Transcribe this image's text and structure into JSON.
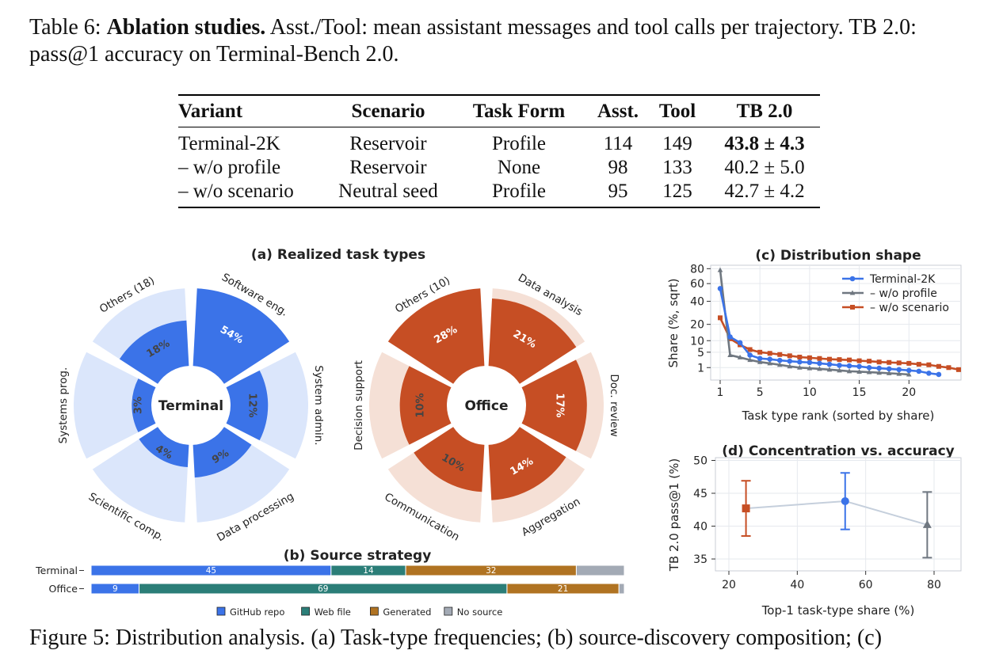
{
  "caption": {
    "label": "Table 6:",
    "title": "Ablation studies.",
    "text": "Asst./Tool: mean assistant messages and tool calls per trajectory. TB 2.0:",
    "line2": "pass@1 accuracy on Terminal-Bench 2.0."
  },
  "table": {
    "headers": [
      "Variant",
      "Scenario",
      "Task Form",
      "Asst.",
      "Tool",
      "TB 2.0"
    ],
    "rows": [
      {
        "variant": "Terminal-2K",
        "scenario": "Reservoir",
        "task_form": "Profile",
        "asst": "114",
        "tool": "149",
        "tb": "43.8 ± 4.3",
        "bold": true
      },
      {
        "variant": "– w/o profile",
        "scenario": "Reservoir",
        "task_form": "None",
        "asst": "98",
        "tool": "133",
        "tb": "40.2 ± 5.0",
        "bold": false
      },
      {
        "variant": "– w/o scenario",
        "scenario": "Neutral seed",
        "task_form": "Profile",
        "asst": "95",
        "tool": "125",
        "tb": "42.7 ± 4.2",
        "bold": false
      }
    ]
  },
  "colors": {
    "terminal": "#3b73e8",
    "terminal_light": "#dbe6fb",
    "office": "#c64e24",
    "office_light": "#f5e0d6",
    "teal": "#2b7e78",
    "generated": "#b07322",
    "nosource": "#a3aab5",
    "gray": "#6f7780"
  },
  "chart_data": [
    {
      "type": "pie",
      "panel_title": "(a) Realized task types",
      "center_label": "Terminal",
      "slices": [
        {
          "label": "Software eng.",
          "value": 54
        },
        {
          "label": "System admin.",
          "value": 12
        },
        {
          "label": "Data processing",
          "value": 9
        },
        {
          "label": "Scientific comp.",
          "value": 4
        },
        {
          "label": "Systems prog.",
          "value": 3
        },
        {
          "label": "Others (18)",
          "value": 18
        }
      ]
    },
    {
      "type": "pie",
      "center_label": "Office",
      "slices": [
        {
          "label": "Data analysis",
          "value": 21
        },
        {
          "label": "Doc. review",
          "value": 17
        },
        {
          "label": "Aggregation",
          "value": 14
        },
        {
          "label": "Communication",
          "value": 10
        },
        {
          "label": "Decision support",
          "value": 10
        },
        {
          "label": "Others (10)",
          "value": 28
        }
      ]
    },
    {
      "type": "bar",
      "title": "(b) Source strategy",
      "categories": [
        "Terminal",
        "Office"
      ],
      "series": [
        {
          "name": "GitHub repo",
          "values": [
            45,
            9
          ]
        },
        {
          "name": "Web file",
          "values": [
            14,
            69
          ]
        },
        {
          "name": "Generated",
          "values": [
            32,
            21
          ]
        },
        {
          "name": "No source",
          "values": [
            9,
            1
          ]
        }
      ]
    },
    {
      "type": "line",
      "title": "(c) Distribution shape",
      "xlabel": "Task type rank (sorted by share)",
      "ylabel": "Share (%, sqrt)",
      "xticks": [
        "1",
        "5",
        "10",
        "15",
        "20"
      ],
      "yticks": [
        "1",
        "5",
        "10",
        "20",
        "40",
        "60",
        "80"
      ],
      "legend_position": "top-right",
      "series": [
        {
          "name": "Terminal-2K",
          "x": [
            1,
            2,
            3,
            4,
            5,
            6,
            7,
            8,
            9,
            10,
            11,
            12,
            13,
            14,
            15,
            16,
            17,
            18,
            19,
            20,
            21,
            22,
            23
          ],
          "y": [
            54,
            12,
            9,
            4,
            3,
            2.8,
            2.5,
            2.3,
            2.1,
            2,
            1.8,
            1.6,
            1.4,
            1.3,
            1.2,
            1,
            0.9,
            0.8,
            0.7,
            0.6,
            0.5,
            0.3,
            0.2
          ]
        },
        {
          "name": "– w/o profile",
          "x": [
            1,
            2,
            3,
            4,
            5,
            6,
            7,
            8,
            9,
            10,
            11,
            12,
            13,
            14,
            15,
            16,
            17,
            18,
            19,
            20
          ],
          "y": [
            78,
            4,
            3.3,
            2.6,
            2.1,
            1.8,
            1.5,
            1.2,
            1,
            0.9,
            0.8,
            0.7,
            0.6,
            0.5,
            0.45,
            0.4,
            0.35,
            0.3,
            0.25,
            0.2
          ]
        },
        {
          "name": "– w/o scenario",
          "x": [
            1,
            2,
            3,
            4,
            5,
            6,
            7,
            8,
            9,
            10,
            11,
            12,
            13,
            14,
            15,
            16,
            17,
            18,
            19,
            20,
            21,
            22,
            23,
            24,
            25
          ],
          "y": [
            25,
            11,
            8,
            6,
            5,
            4.6,
            4.2,
            3.8,
            3.4,
            3.2,
            3,
            2.8,
            2.7,
            2.6,
            2.4,
            2.3,
            2.1,
            2,
            1.9,
            1.8,
            1.6,
            1.5,
            1.2,
            1,
            0.7
          ]
        }
      ]
    },
    {
      "type": "scatter",
      "title": "(d) Concentration vs. accuracy",
      "xlabel": "Top-1 task-type share (%)",
      "ylabel": "TB 2.0 pass@1 (%)",
      "xticks": [
        "20",
        "40",
        "60",
        "80"
      ],
      "yticks": [
        "35",
        "40",
        "45",
        "50"
      ],
      "points": [
        {
          "x": 25,
          "y": 42.7,
          "err": 4.2
        },
        {
          "x": 54,
          "y": 43.8,
          "err": 4.3
        },
        {
          "x": 78,
          "y": 40.2,
          "err": 5.0
        }
      ]
    }
  ],
  "figure_caption": "Figure 5: Distribution analysis. (a) Task-type frequencies; (b) source-discovery composition; (c)"
}
